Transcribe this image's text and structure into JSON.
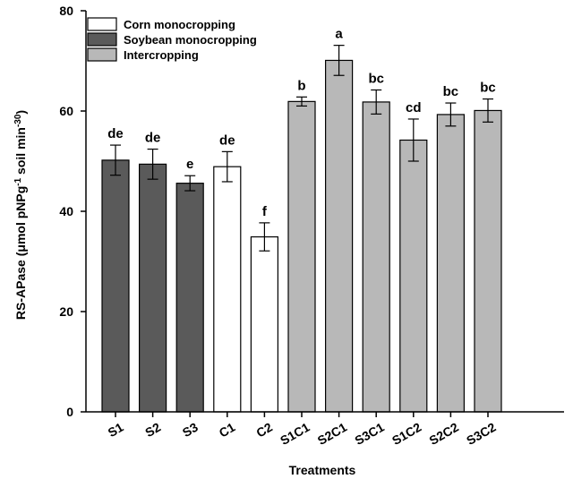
{
  "chart_data": {
    "type": "bar",
    "title": "",
    "xlabel": "Treatments",
    "ylabel_parts": [
      "RS-APase (μmol pNPg",
      "-1",
      " soil min",
      "-30",
      ")"
    ],
    "ylim": [
      0,
      80
    ],
    "yticks": [
      0,
      20,
      40,
      60,
      80
    ],
    "grid": false,
    "legend_position": "top-left",
    "groups": [
      {
        "name": "Corn monocropping",
        "color": "#ffffff"
      },
      {
        "name": "Soybean monocropping",
        "color": "#5a5a5a"
      },
      {
        "name": "Intercropping",
        "color": "#b8b8b8"
      }
    ],
    "categories": [
      "S1",
      "S2",
      "S3",
      "C1",
      "C2",
      "S1C1",
      "S2C1",
      "S3C1",
      "S1C2",
      "S2C2",
      "S3C2"
    ],
    "group_of_category": [
      1,
      1,
      1,
      0,
      0,
      2,
      2,
      2,
      2,
      2,
      2
    ],
    "values": [
      50.2,
      49.4,
      45.6,
      48.9,
      34.9,
      61.9,
      70.1,
      61.8,
      54.2,
      59.3,
      60.1
    ],
    "errors": [
      3.0,
      3.0,
      1.5,
      3.0,
      2.8,
      0.9,
      3.0,
      2.4,
      4.2,
      2.3,
      2.3
    ],
    "significance": [
      "de",
      "de",
      "e",
      "de",
      "f",
      "b",
      "a",
      "bc",
      "cd",
      "bc",
      "bc"
    ]
  }
}
